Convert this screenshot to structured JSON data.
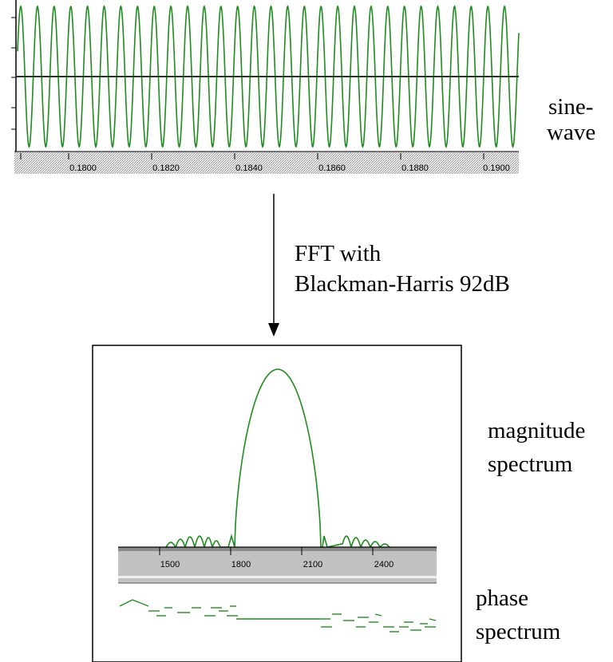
{
  "sine_plot": {
    "ticks": [
      "0.1800",
      "0.1820",
      "0.1840",
      "0.1860",
      "0.1880",
      "0.1900"
    ],
    "trace_color": "#1e8c1e",
    "axis_bg": "#cfcfcf"
  },
  "labels": {
    "sinewave_line1": "sine-",
    "sinewave_line2": "wave",
    "fft_line1": "FFT with",
    "fft_line2": "Blackman-Harris 92dB",
    "magnitude_line1": "magnitude",
    "magnitude_line2": "spectrum",
    "phase_line1": "phase",
    "phase_line2": "spectrum"
  },
  "spectrum_plot": {
    "ticks": [
      "1500",
      "1800",
      "2100",
      "2400"
    ],
    "trace_color": "#1e8c1e"
  }
}
